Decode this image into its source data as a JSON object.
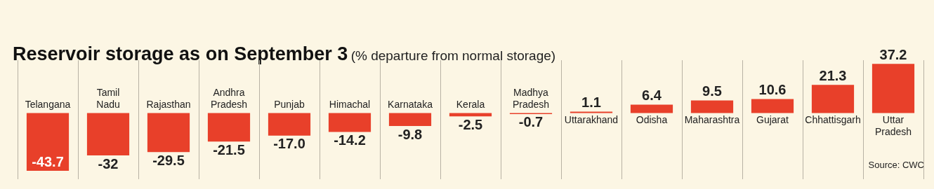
{
  "chart_data": {
    "type": "bar",
    "title": "Reservoir storage as on September 3",
    "subtitle": "(% departure from normal storage)",
    "categories": [
      "Telangana",
      "Tamil Nadu",
      "Rajasthan",
      "Andhra Pradesh",
      "Punjab",
      "Himachal",
      "Karnataka",
      "Kerala",
      "Madhya Pradesh",
      "Uttarakhand",
      "Odisha",
      "Maharashtra",
      "Gujarat",
      "Chhattisgarh",
      "Uttar Pradesh"
    ],
    "values": [
      -43.7,
      -32,
      -29.5,
      -21.5,
      -17.0,
      -14.2,
      -9.8,
      -2.5,
      -0.7,
      1.1,
      6.4,
      9.5,
      10.6,
      21.3,
      37.2
    ],
    "value_labels": [
      "-43.7",
      "-32",
      "-29.5",
      "-21.5",
      "-17.0",
      "-14.2",
      "-9.8",
      "-2.5",
      "-0.7",
      "1.1",
      "6.4",
      "9.5",
      "10.6",
      "21.3",
      "37.2"
    ],
    "color": "#e8402a",
    "grid": "x",
    "legend": false,
    "tick_labels": false,
    "annotations": [
      "Source: CWC"
    ]
  }
}
